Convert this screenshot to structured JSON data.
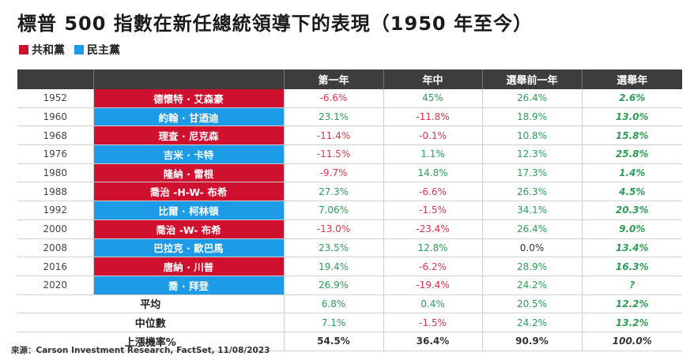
{
  "title": "標普 500 指數在新任總統領導下的表現（1950 年至今）",
  "colors": {
    "republican": "#d0102f",
    "democrat": "#1e9be6",
    "header_bg": "#3d3d3d",
    "positive": "#2e9c57",
    "negative": "#e0334a"
  },
  "legend": [
    {
      "label": "共和黨",
      "color": "#d0102f"
    },
    {
      "label": "民主黨",
      "color": "#1e9be6"
    }
  ],
  "chart_data": {
    "type": "table",
    "columns": [
      "",
      "",
      "第一年",
      "年中",
      "選舉前一年",
      "選舉年"
    ],
    "rows": [
      {
        "year": "1952",
        "president": "德懷特 · 艾森豪",
        "party": "republican",
        "values": [
          "-6.6%",
          "45%",
          "26.4%",
          "2.6%"
        ]
      },
      {
        "year": "1960",
        "president": "約翰 · 甘迺迪",
        "party": "democrat",
        "values": [
          "23.1%",
          "-11.8%",
          "18.9%",
          "13.0%"
        ]
      },
      {
        "year": "1968",
        "president": "理查 · 尼克森",
        "party": "republican",
        "values": [
          "-11.4%",
          "-0.1%",
          "10.8%",
          "15.8%"
        ]
      },
      {
        "year": "1976",
        "president": "吉米 · 卡特",
        "party": "democrat",
        "values": [
          "-11.5%",
          "1.1%",
          "12.3%",
          "25.8%"
        ]
      },
      {
        "year": "1980",
        "president": "隆納 · 雷根",
        "party": "republican",
        "values": [
          "-9.7%",
          "14.8%",
          "17.3%",
          "1.4%"
        ]
      },
      {
        "year": "1988",
        "president": "喬治 -H-W- 布希",
        "party": "republican",
        "values": [
          "27.3%",
          "-6.6%",
          "26.3%",
          "4.5%"
        ]
      },
      {
        "year": "1992",
        "president": "比爾 · 柯林頓",
        "party": "democrat",
        "values": [
          "7.06%",
          "-1.5%",
          "34.1%",
          "20.3%"
        ]
      },
      {
        "year": "2000",
        "president": "喬治 -W- 布希",
        "party": "republican",
        "values": [
          "-13.0%",
          "-23.4%",
          "26.4%",
          "9.0%"
        ]
      },
      {
        "year": "2008",
        "president": "巴拉克 · 歐巴馬",
        "party": "democrat",
        "values": [
          "23.5%",
          "12.8%",
          "0.0%",
          "13.4%"
        ]
      },
      {
        "year": "2016",
        "president": "唐納 · 川普",
        "party": "republican",
        "values": [
          "19.4%",
          "-6.2%",
          "28.9%",
          "16.3%"
        ]
      },
      {
        "year": "2020",
        "president": "喬 · 拜登",
        "party": "democrat",
        "values": [
          "26.9%",
          "-19.4%",
          "24.2%",
          "?"
        ]
      }
    ],
    "summary": [
      {
        "label": "平均",
        "values": [
          "6.8%",
          "0.4%",
          "20.5%",
          "12.2%"
        ]
      },
      {
        "label": "中位數",
        "values": [
          "7.1%",
          "-1.5%",
          "24.2%",
          "13.2%"
        ]
      },
      {
        "label": "上漲機率%",
        "values": [
          "54.5%",
          "36.4%",
          "90.9%",
          "100.0%"
        ]
      }
    ]
  },
  "source": "來源：Carson Investment Research, FactSet, 11/08/2023"
}
